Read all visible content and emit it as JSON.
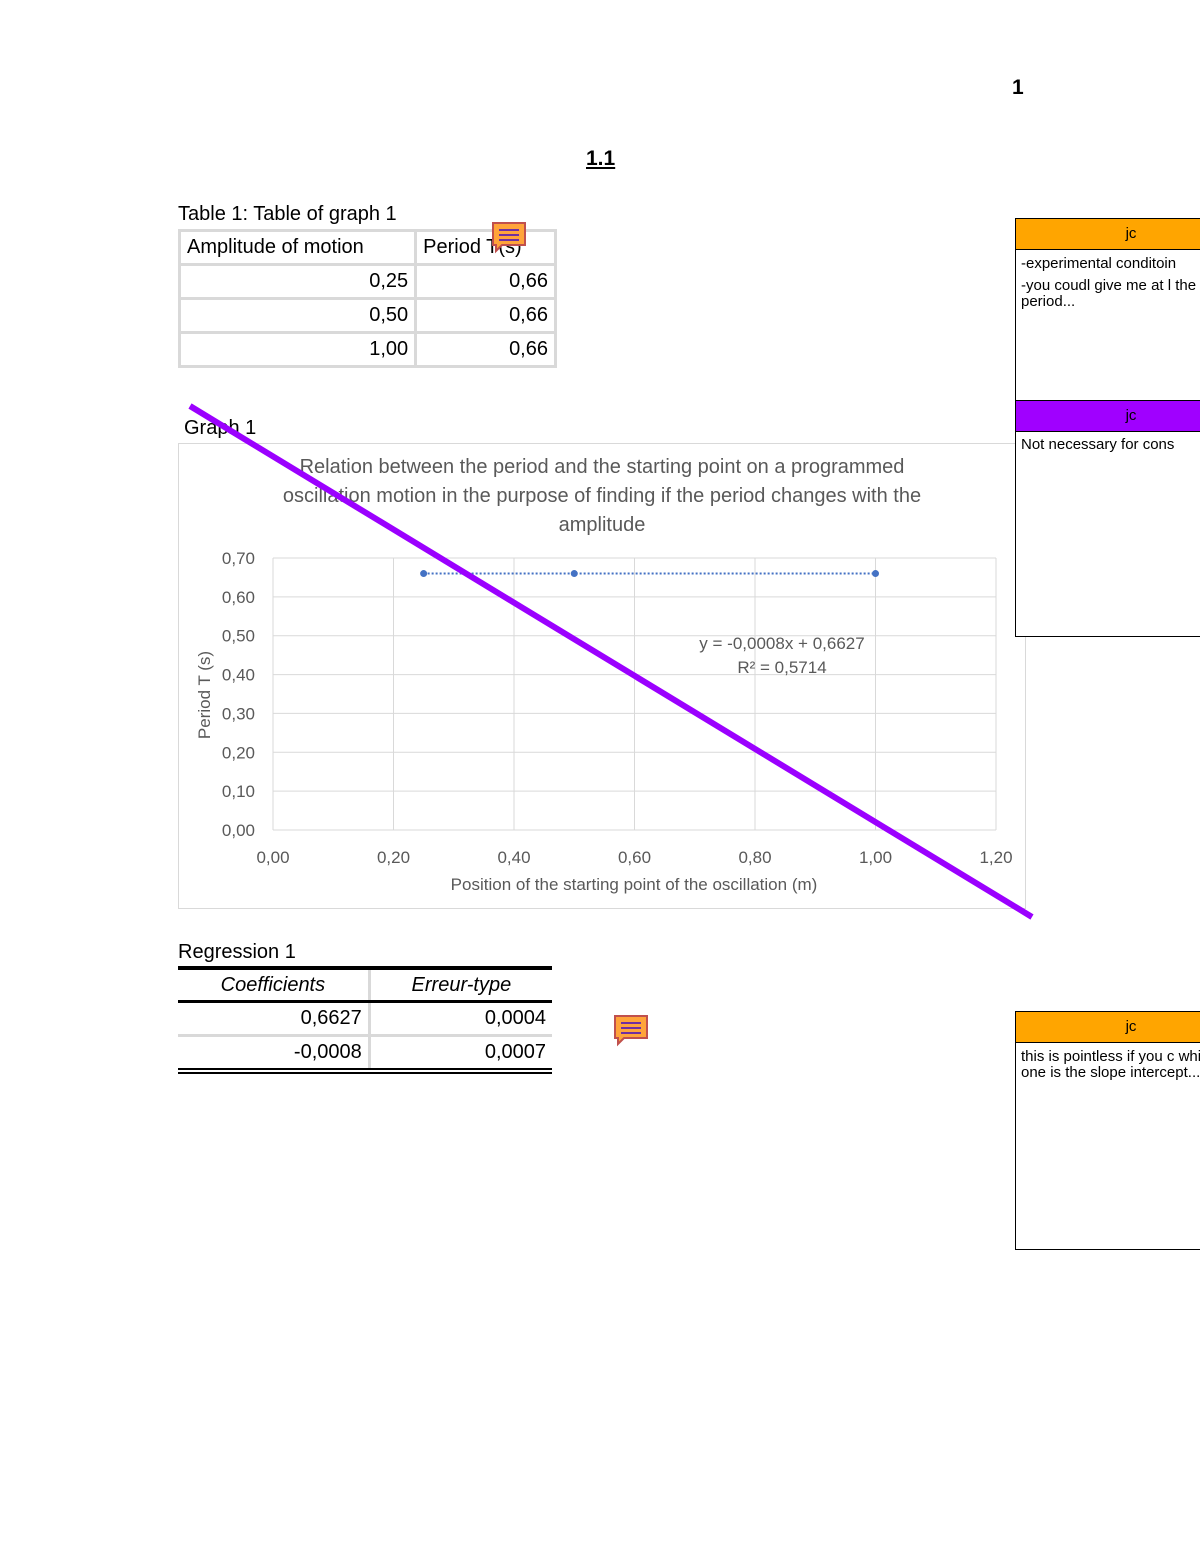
{
  "page_number": "1",
  "section_title": "1.1",
  "table": {
    "caption": "Table 1: Table of graph 1",
    "headers": [
      "Amplitude of motion",
      "Period T(s)"
    ],
    "rows": [
      [
        "0,25",
        "0,66"
      ],
      [
        "0,50",
        "0,66"
      ],
      [
        "1,00",
        "0,66"
      ]
    ]
  },
  "graph_label": "Graph 1",
  "chart_data": {
    "type": "scatter",
    "title": "Relation between the period and the starting point on a programmed oscillation motion in the purpose of finding if the period changes with the amplitude",
    "x_label": "Position of the starting point of the oscillation (m)",
    "y_label": "Period T (s)",
    "x": [
      0.25,
      0.5,
      1.0
    ],
    "values": [
      0.66,
      0.66,
      0.66
    ],
    "color": "#4472c4",
    "xlim": [
      0,
      1.2
    ],
    "xticks": [
      {
        "value": 0,
        "label": "0,00"
      },
      {
        "value": 0.2,
        "label": "0,20"
      },
      {
        "value": 0.4,
        "label": "0,40"
      },
      {
        "value": 0.6,
        "label": "0,60"
      },
      {
        "value": 0.8,
        "label": "0,80"
      },
      {
        "value": 1.0,
        "label": "1,00"
      },
      {
        "value": 1.2,
        "label": "1,20"
      }
    ],
    "ylim": [
      0,
      0.7
    ],
    "yticks": [
      {
        "value": 0,
        "label": "0,00"
      },
      {
        "value": 0.1,
        "label": "0,10"
      },
      {
        "value": 0.2,
        "label": "0,20"
      },
      {
        "value": 0.3,
        "label": "0,30"
      },
      {
        "value": 0.4,
        "label": "0,40"
      },
      {
        "value": 0.5,
        "label": "0,50"
      },
      {
        "value": 0.6,
        "label": "0,60"
      },
      {
        "value": 0.7,
        "label": "0,70"
      }
    ],
    "grid": true,
    "trendline_equation": "y = -0,0008x + 0,6627",
    "trendline_r2": "R² = 0,5714"
  },
  "regression": {
    "caption": "Regression 1",
    "headers": [
      "Coefficients",
      "Erreur-type"
    ],
    "rows": [
      [
        "0,6627",
        "0,0004"
      ],
      [
        "-0,0008",
        "0,0007"
      ]
    ]
  },
  "comments": [
    {
      "author": "jc",
      "paragraphs": [
        "-experimental conditoin",
        "-you coudl give me at l the period..."
      ]
    },
    {
      "author": "jc",
      "paragraphs": [
        "Not necessary for cons"
      ]
    },
    {
      "author": "jc",
      "paragraphs": [
        "this is pointless if you c which one is the slope intercept..."
      ]
    }
  ]
}
